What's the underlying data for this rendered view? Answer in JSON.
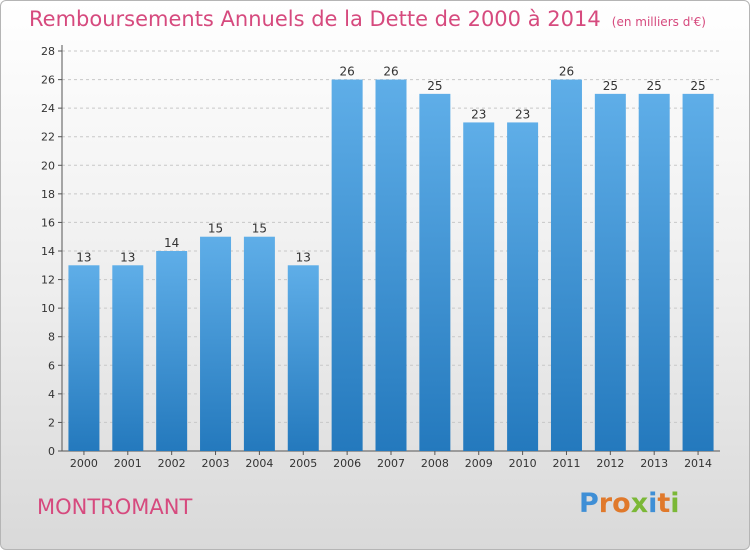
{
  "header": {
    "title": "Remboursements Annuels de la Dette de 2000 à 2014",
    "subtitle": "(en milliers d'€)"
  },
  "footer": {
    "city": "MONTROMANT",
    "logo_text": "Proxiti"
  },
  "colors": {
    "title": "#d64a7e",
    "bar_top": "#5faee8",
    "bar_bottom": "#2479bd",
    "logo_letters": [
      "#3f8fd6",
      "#e0792b",
      "#e0792b",
      "#7bb837",
      "#3f8fd6",
      "#e0792b",
      "#7bb837"
    ]
  },
  "chart_data": {
    "type": "bar",
    "categories": [
      "2000",
      "2001",
      "2002",
      "2003",
      "2004",
      "2005",
      "2006",
      "2007",
      "2008",
      "2009",
      "2010",
      "2011",
      "2012",
      "2013",
      "2014"
    ],
    "values": [
      13,
      13,
      14,
      15,
      15,
      13,
      26,
      26,
      25,
      23,
      23,
      26,
      25,
      25,
      25
    ],
    "data_labels": [
      "13",
      "13",
      "14",
      "15",
      "15",
      "13",
      "26",
      "26",
      "25",
      "23",
      "23",
      "26",
      "25",
      "25",
      "25"
    ],
    "title": "Remboursements Annuels de la Dette de 2000 à 2014",
    "xlabel": "",
    "ylabel": "",
    "ylim": [
      0,
      28
    ],
    "yticks": [
      "0",
      "2",
      "4",
      "6",
      "8",
      "10",
      "12",
      "14",
      "16",
      "18",
      "20",
      "22",
      "24",
      "26",
      "28"
    ],
    "grid": true
  }
}
